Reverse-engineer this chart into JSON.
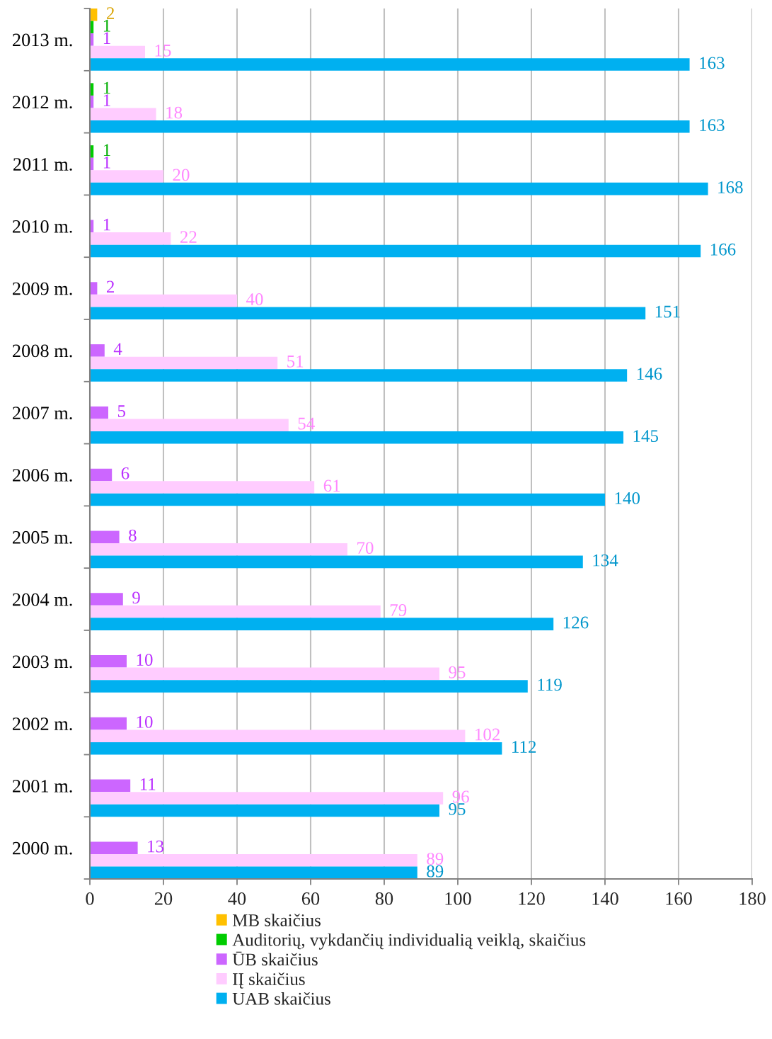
{
  "chart_data": {
    "type": "bar",
    "orientation": "horizontal",
    "categories": [
      "2013 m.",
      "2012 m.",
      "2011 m.",
      "2010 m.",
      "2009 m.",
      "2008 m.",
      "2007 m.",
      "2006 m.",
      "2005 m.",
      "2004 m.",
      "2003 m.",
      "2002 m.",
      "2001 m.",
      "2000 m."
    ],
    "series": [
      {
        "name": "MB skaičius",
        "color": "#ffc000",
        "values": [
          2,
          null,
          null,
          null,
          null,
          null,
          null,
          null,
          null,
          null,
          null,
          null,
          null,
          null
        ]
      },
      {
        "name": "Auditorių, vykdančių individualią veiklą, skaičius",
        "color": "#00cc00",
        "values": [
          1,
          1,
          1,
          null,
          null,
          null,
          null,
          null,
          null,
          null,
          null,
          null,
          null,
          null
        ]
      },
      {
        "name": "ŪB skaičius",
        "color": "#cc66ff",
        "values": [
          1,
          1,
          1,
          1,
          2,
          4,
          5,
          6,
          8,
          9,
          10,
          10,
          11,
          13
        ]
      },
      {
        "name": "IĮ skaičius",
        "color": "#ffccff",
        "values": [
          15,
          18,
          20,
          22,
          40,
          51,
          54,
          61,
          70,
          79,
          95,
          102,
          96,
          89
        ]
      },
      {
        "name": "UAB skaičius",
        "color": "#00b0f0",
        "values": [
          163,
          163,
          168,
          166,
          151,
          146,
          145,
          140,
          134,
          126,
          119,
          112,
          95,
          89
        ]
      }
    ],
    "xlim": [
      0,
      180
    ],
    "xticks": [
      0,
      20,
      40,
      60,
      80,
      100,
      120,
      140,
      160,
      180
    ],
    "grid": "x",
    "legend": "bottom",
    "data_labels": true
  }
}
